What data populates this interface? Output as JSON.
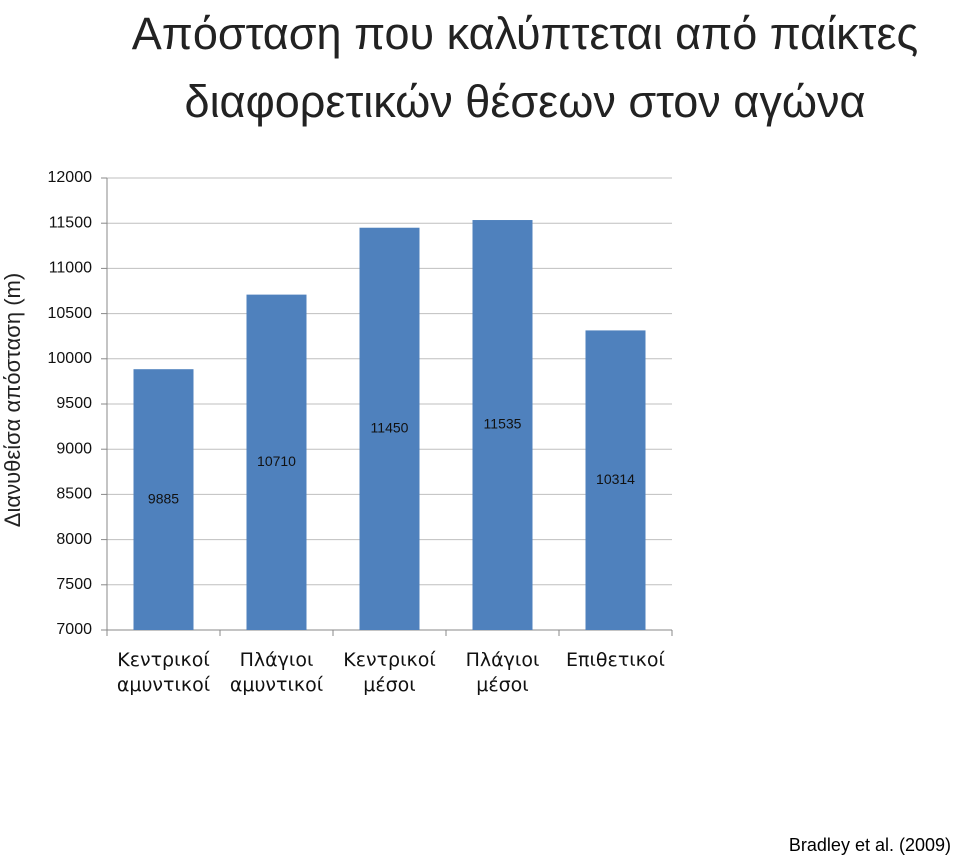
{
  "chart_data": {
    "type": "bar",
    "title": "Απόσταση που καλύπτεται από παίκτες διαφορετικών θέσεων στον αγώνα",
    "y_label": "Διανυθείσα απόσταση (m)",
    "source": "Bradley et al. (2009)",
    "categories": [
      "Κεντρικοί αμυντικοί",
      "Πλάγιοι αμυντικοί",
      "Κεντρικοί μέσοι",
      "Πλάγιοι μέσοι",
      "Επιθετικοί"
    ],
    "values": [
      9885,
      10710,
      11450,
      11535,
      10314
    ],
    "color": "#4f81bd",
    "ylim": [
      7000,
      12000
    ],
    "yticks": [
      7000,
      7500,
      8000,
      8500,
      9000,
      9500,
      10000,
      10500,
      11000,
      11500,
      12000
    ],
    "grid": true
  }
}
